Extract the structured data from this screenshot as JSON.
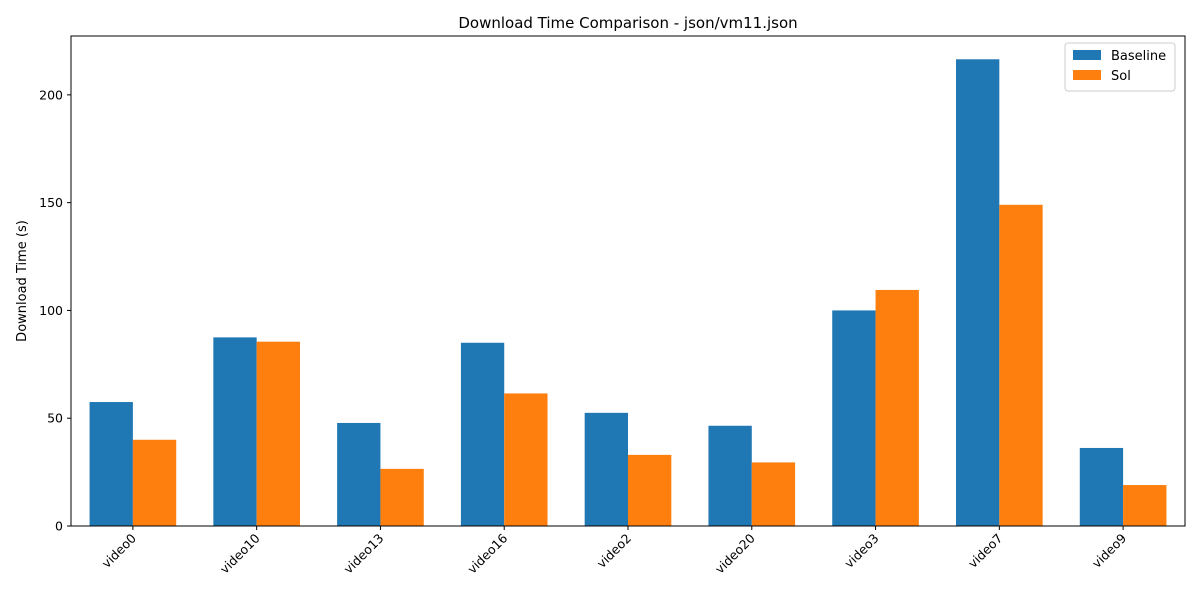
{
  "chart_data": {
    "type": "bar",
    "title": "Download Time Comparison - json/vm11.json",
    "xlabel": "",
    "ylabel": "Download Time (s)",
    "categories": [
      "video0",
      "video10",
      "video13",
      "video16",
      "video2",
      "video20",
      "video3",
      "video7",
      "video9"
    ],
    "series": [
      {
        "name": "Baseline",
        "color": "#1f77b4",
        "values": [
          57.5,
          87.5,
          47.8,
          85.0,
          52.5,
          46.5,
          100.0,
          216.5,
          36.2
        ]
      },
      {
        "name": "Sol",
        "color": "#ff7f0e",
        "values": [
          40.0,
          85.5,
          26.5,
          61.5,
          33.0,
          29.5,
          109.5,
          149.0,
          19.0
        ]
      }
    ],
    "ylim": [
      0,
      227.3
    ],
    "yticks": [
      0,
      50,
      100,
      150,
      200
    ],
    "grid": false,
    "legend_position": "top-right"
  }
}
